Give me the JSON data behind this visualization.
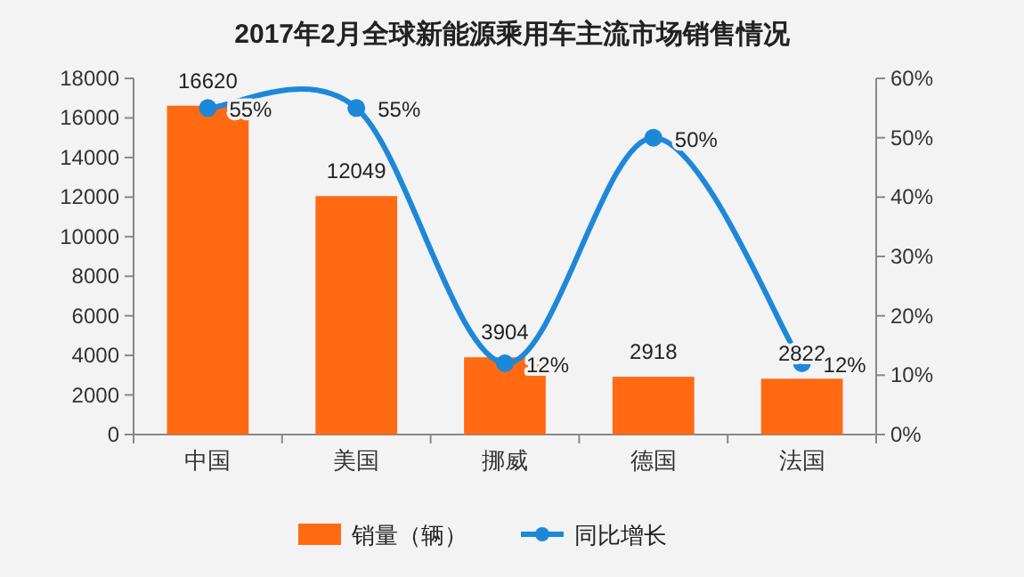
{
  "chart_data": {
    "type": "bar",
    "title": "2017年2月全球新能源乘用车主流市场销售情况",
    "categories": [
      "中国",
      "美国",
      "挪威",
      "德国",
      "法国"
    ],
    "series": [
      {
        "name": "销量（辆）",
        "color": "#ff6a13",
        "values": [
          16620,
          12049,
          3904,
          2918,
          2822
        ]
      },
      {
        "name": "同比增长",
        "type": "line",
        "axis": "y2",
        "color": "#1e88d8",
        "values": [
          55,
          55,
          12,
          50,
          12
        ],
        "value_labels": [
          "55%",
          "55%",
          "12%",
          "50%",
          "12%"
        ]
      }
    ],
    "ylim": [
      0,
      18000
    ],
    "yticks": [
      0,
      2000,
      4000,
      6000,
      8000,
      10000,
      12000,
      14000,
      16000,
      18000
    ],
    "y2lim": [
      0,
      60
    ],
    "y2ticks": [
      {
        "value": 0,
        "label": "0%"
      },
      {
        "value": 10,
        "label": "10%"
      },
      {
        "value": 20,
        "label": "20%"
      },
      {
        "value": 30,
        "label": "30%"
      },
      {
        "value": 40,
        "label": "40%"
      },
      {
        "value": 50,
        "label": "50%"
      },
      {
        "value": 60,
        "label": "60%"
      }
    ],
    "data_labels": true,
    "marker": "circle",
    "legend": "bottom",
    "grid": false
  }
}
